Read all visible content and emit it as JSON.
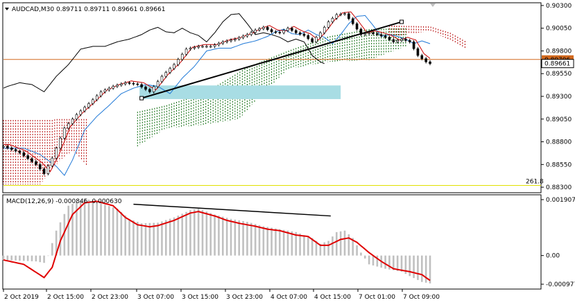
{
  "chart_data": [
    {
      "type": "candlestick",
      "title": "AUDCAD,M30  0.89711 0.89711 0.89661 0.89661",
      "symbol_menu_icon": "triangle-down-icon",
      "y_ticks": [
        "0.90300",
        "0.90050",
        "0.89800",
        "0.89550",
        "0.89300",
        "0.89050",
        "0.88800",
        "0.88550",
        "0.88300"
      ],
      "ylim": [
        0.8827,
        0.9033
      ],
      "current_price_label": "0.89661",
      "current_price": 0.89661,
      "line_price_label": "0.89706",
      "line_price": 0.89706,
      "fib_label": "261.8",
      "fib_level": 0.8832,
      "colors": {
        "tenkan": "#cc0000",
        "kijun": "#1e78d7",
        "chikou": "#000000",
        "cloud_bull": "#006400",
        "cloud_bear": "#b40000",
        "zone": "#a8dde4",
        "hline": "#d2691e",
        "trendline": "#000000",
        "fib": "#e0e000"
      },
      "trendline": {
        "from": {
          "x": "3 Oct 07:00",
          "y": 0.8928
        },
        "to": {
          "x": "7 Oct 09:00",
          "y": 0.9012
        }
      },
      "zone": {
        "x_from": "3 Oct 06:00",
        "x_to": "4 Oct 18:30",
        "y_from": 0.8927,
        "y_to": 0.8942
      },
      "price_path": [
        [
          0,
          0.8875
        ],
        [
          4,
          0.8868
        ],
        [
          8,
          0.8855
        ],
        [
          10,
          0.8845
        ],
        [
          12,
          0.8862
        ],
        [
          15,
          0.8895
        ],
        [
          18,
          0.891
        ],
        [
          21,
          0.8922
        ],
        [
          24,
          0.8935
        ],
        [
          27,
          0.8941
        ],
        [
          30,
          0.8945
        ],
        [
          33,
          0.8943
        ],
        [
          36,
          0.8935
        ],
        [
          39,
          0.8952
        ],
        [
          42,
          0.8965
        ],
        [
          45,
          0.8982
        ],
        [
          48,
          0.8985
        ],
        [
          51,
          0.8985
        ],
        [
          54,
          0.899
        ],
        [
          57,
          0.8993
        ],
        [
          60,
          0.8998
        ],
        [
          62,
          0.9003
        ],
        [
          64,
          0.9006
        ],
        [
          66,
          0.9001
        ],
        [
          68,
          0.9
        ],
        [
          70,
          0.9005
        ],
        [
          72,
          0.9
        ],
        [
          74,
          0.8997
        ],
        [
          76,
          0.899
        ],
        [
          78,
          0.9
        ],
        [
          80,
          0.9012
        ],
        [
          82,
          0.902
        ],
        [
          84,
          0.9021
        ],
        [
          86,
          0.901
        ],
        [
          88,
          0.8998
        ],
        [
          90,
          0.9
        ],
        [
          92,
          0.8998
        ],
        [
          94,
          0.8995
        ],
        [
          96,
          0.899
        ],
        [
          98,
          0.8993
        ],
        [
          100,
          0.899
        ],
        [
          102,
          0.8975
        ],
        [
          104,
          0.8968
        ],
        [
          105,
          0.8966
        ]
      ]
    },
    {
      "type": "macd",
      "title": "MACD(12,26,9) -0.000846 -0.000630",
      "y_ticks": [
        "0.001907",
        "0.00",
        "-0.000977"
      ],
      "ylim": [
        -0.000977,
        0.001907
      ],
      "colors": {
        "histogram": "#c0c0c0",
        "signal": "#e00000",
        "divergence": "#000000"
      },
      "histogram_path": [
        [
          0,
          -0.00015
        ],
        [
          8,
          -0.0002
        ],
        [
          10,
          -0.00025
        ],
        [
          11,
          0.0
        ],
        [
          13,
          0.00085
        ],
        [
          16,
          0.0017
        ],
        [
          20,
          0.00195
        ],
        [
          24,
          0.00178
        ],
        [
          28,
          0.0016
        ],
        [
          31,
          0.00125
        ],
        [
          34,
          0.0011
        ],
        [
          38,
          0.00112
        ],
        [
          42,
          0.0013
        ],
        [
          46,
          0.00155
        ],
        [
          48,
          0.0016
        ],
        [
          52,
          0.0014
        ],
        [
          56,
          0.00125
        ],
        [
          60,
          0.00115
        ],
        [
          64,
          0.001
        ],
        [
          68,
          0.0009
        ],
        [
          72,
          0.0008
        ],
        [
          76,
          0.0006
        ],
        [
          78,
          0.0004
        ],
        [
          80,
          0.0005
        ],
        [
          82,
          0.0008
        ],
        [
          84,
          0.00085
        ],
        [
          86,
          0.0006
        ],
        [
          88,
          0.0001
        ],
        [
          90,
          -0.0003
        ],
        [
          94,
          -0.00045
        ],
        [
          98,
          -0.00055
        ],
        [
          100,
          -0.0007
        ],
        [
          103,
          -0.0009
        ],
        [
          105,
          -0.00095
        ]
      ],
      "signal_path": [
        [
          0,
          -0.00015
        ],
        [
          5,
          -0.0003
        ],
        [
          10,
          -0.00075
        ],
        [
          12,
          -0.0004
        ],
        [
          14,
          0.0005
        ],
        [
          17,
          0.0014
        ],
        [
          20,
          0.0018
        ],
        [
          23,
          0.00185
        ],
        [
          27,
          0.0017
        ],
        [
          30,
          0.0013
        ],
        [
          33,
          0.00105
        ],
        [
          36,
          0.00098
        ],
        [
          38,
          0.00102
        ],
        [
          42,
          0.0012
        ],
        [
          46,
          0.00145
        ],
        [
          48,
          0.0015
        ],
        [
          52,
          0.00135
        ],
        [
          55,
          0.0012
        ],
        [
          58,
          0.0011
        ],
        [
          62,
          0.001
        ],
        [
          65,
          0.0009
        ],
        [
          68,
          0.00085
        ],
        [
          72,
          0.0007
        ],
        [
          75,
          0.00065
        ],
        [
          78,
          0.00035
        ],
        [
          80,
          0.00035
        ],
        [
          83,
          0.00055
        ],
        [
          85,
          0.0006
        ],
        [
          87,
          0.00045
        ],
        [
          90,
          0.0001
        ],
        [
          93,
          -0.0002
        ],
        [
          96,
          -0.00045
        ],
        [
          98,
          -0.0005
        ],
        [
          100,
          -0.00055
        ],
        [
          103,
          -0.00065
        ],
        [
          105,
          -0.00085
        ]
      ],
      "divergence_line": {
        "from": {
          "x": "3 Oct 05:00",
          "y": 0.00175
        },
        "to": {
          "x": "4 Oct 15:00",
          "y": 0.00135
        }
      }
    }
  ],
  "x_ticks": [
    "2 Oct 2019",
    "2 Oct 15:00",
    "2 Oct 23:00",
    "3 Oct 07:00",
    "3 Oct 15:00",
    "3 Oct 23:00",
    "4 Oct 07:00",
    "4 Oct 15:00",
    "7 Oct 01:00",
    "7 Oct 09:00"
  ]
}
